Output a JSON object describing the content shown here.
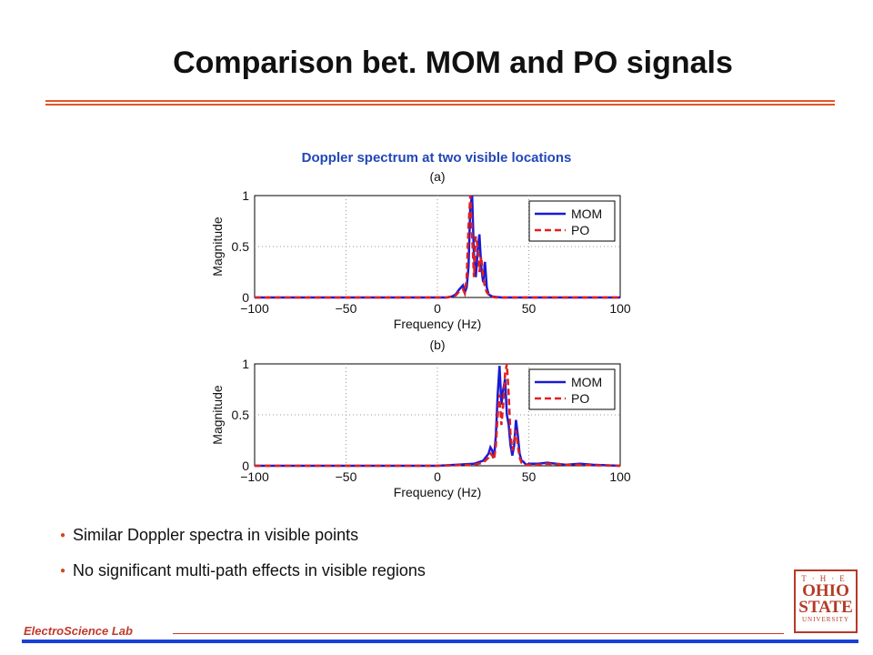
{
  "title": "Comparison bet. MOM and PO signals",
  "figure_caption": "Doppler spectrum at two visible locations",
  "bullets": [
    "Similar Doppler spectra in visible points",
    "No significant multi-path effects in visible regions"
  ],
  "footer": {
    "lab": "ElectroScience Lab"
  },
  "logo": {
    "the": "T·H·E",
    "line1": "OHIO",
    "line2": "STATE",
    "line3": "UNIVERSITY"
  },
  "colors": {
    "accent": "#e0572a",
    "mom": "#1a1ad6",
    "po": "#e02020",
    "footer_bar": "#1a3fd9"
  },
  "chart_data": [
    {
      "type": "line",
      "title": "(a)",
      "xlabel": "Frequency (Hz)",
      "ylabel": "Magnitude",
      "xlim": [
        -100,
        100
      ],
      "ylim": [
        0,
        1
      ],
      "xticks": [
        -100,
        -50,
        0,
        50,
        100
      ],
      "yticks": [
        0,
        0.5,
        1
      ],
      "grid": true,
      "legend": "top-right",
      "series": [
        {
          "name": "MOM",
          "style": "solid",
          "x": [
            -100,
            0,
            5,
            8,
            10,
            12,
            14,
            15,
            16,
            17,
            18,
            19,
            20,
            21,
            22,
            23,
            24,
            25,
            26,
            27,
            28,
            29,
            30,
            32,
            35,
            40,
            100
          ],
          "y": [
            0,
            0,
            0,
            0.01,
            0.03,
            0.08,
            0.12,
            0.05,
            0.1,
            0.3,
            0.9,
            1.0,
            0.4,
            0.2,
            0.45,
            0.62,
            0.3,
            0.15,
            0.35,
            0.1,
            0.03,
            0.02,
            0.01,
            0.005,
            0,
            0,
            0
          ]
        },
        {
          "name": "PO",
          "style": "dashed",
          "x": [
            -100,
            0,
            5,
            8,
            10,
            12,
            14,
            15,
            16,
            17,
            18,
            19,
            20,
            21,
            22,
            23,
            24,
            25,
            26,
            27,
            28,
            29,
            30,
            32,
            35,
            40,
            100
          ],
          "y": [
            0,
            0,
            0,
            0.01,
            0.02,
            0.06,
            0.08,
            0.04,
            0.2,
            0.7,
            1.0,
            0.6,
            0.2,
            0.6,
            0.5,
            0.25,
            0.4,
            0.2,
            0.1,
            0.05,
            0.03,
            0.01,
            0.005,
            0,
            0,
            0,
            0
          ]
        }
      ]
    },
    {
      "type": "line",
      "title": "(b)",
      "xlabel": "Frequency (Hz)",
      "ylabel": "Magnitude",
      "xlim": [
        -100,
        100
      ],
      "ylim": [
        0,
        1
      ],
      "xticks": [
        -100,
        -50,
        0,
        50,
        100
      ],
      "yticks": [
        0,
        0.5,
        1
      ],
      "grid": true,
      "legend": "top-right",
      "series": [
        {
          "name": "MOM",
          "style": "solid",
          "x": [
            -100,
            0,
            20,
            25,
            28,
            29,
            30,
            31,
            32,
            33,
            34,
            35,
            36,
            37,
            38,
            39,
            40,
            41,
            42,
            43,
            44,
            45,
            46,
            47,
            48,
            49,
            50,
            55,
            60,
            70,
            78,
            85,
            100
          ],
          "y": [
            0,
            0,
            0.02,
            0.05,
            0.12,
            0.18,
            0.15,
            0.08,
            0.3,
            0.7,
            0.98,
            0.6,
            0.75,
            0.85,
            0.5,
            0.4,
            0.2,
            0.1,
            0.2,
            0.45,
            0.3,
            0.12,
            0.05,
            0.04,
            0.02,
            0.01,
            0.02,
            0.02,
            0.03,
            0.01,
            0.02,
            0.01,
            0
          ]
        },
        {
          "name": "PO",
          "style": "dashed",
          "x": [
            -100,
            0,
            20,
            25,
            28,
            29,
            30,
            31,
            32,
            33,
            34,
            35,
            36,
            37,
            38,
            39,
            40,
            41,
            42,
            43,
            44,
            45,
            46,
            47,
            48,
            49,
            50,
            55,
            60,
            70,
            78,
            85,
            100
          ],
          "y": [
            0,
            0,
            0.01,
            0.03,
            0.08,
            0.12,
            0.1,
            0.06,
            0.2,
            0.5,
            0.7,
            0.4,
            0.6,
            0.9,
            1.0,
            0.7,
            0.3,
            0.15,
            0.25,
            0.35,
            0.2,
            0.08,
            0.03,
            0.02,
            0.01,
            0.01,
            0.01,
            0.01,
            0.02,
            0.01,
            0.01,
            0.005,
            0
          ]
        }
      ]
    }
  ]
}
